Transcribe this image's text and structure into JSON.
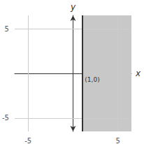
{
  "chart_data": {
    "type": "region",
    "xlabel": "x",
    "ylabel": "y",
    "xlim": [
      -6.5,
      6.5
    ],
    "ylim": [
      -6.5,
      6.5
    ],
    "xticks": [
      -5,
      5
    ],
    "yticks": [
      5,
      -5
    ],
    "grid": true,
    "boundary_x": 1,
    "color": "#c8c8c8",
    "annotations": [
      {
        "text": "(1,0)",
        "x": 1,
        "y": 0
      }
    ]
  }
}
